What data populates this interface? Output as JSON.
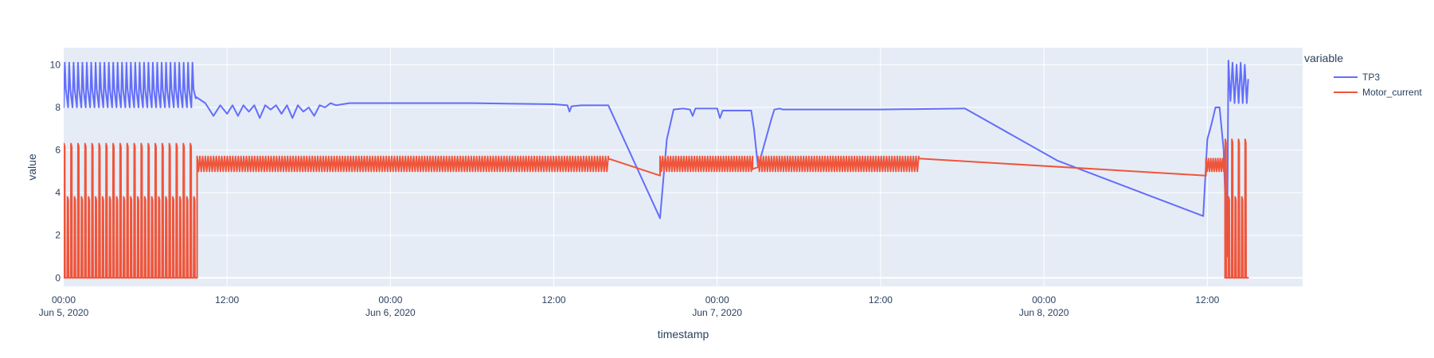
{
  "chart_data": {
    "type": "line",
    "title": "",
    "xlabel": "timestamp",
    "ylabel": "value",
    "ylim": [
      -0.4,
      10.8
    ],
    "xlim_hours": [
      0,
      91
    ],
    "grid": true,
    "legend_title": "variable",
    "legend_position": "top-right",
    "colors": {
      "plot_bg": "#e5ecf6",
      "grid": "#ffffff",
      "text": "#2a3f5f"
    },
    "y_ticks": [
      "0",
      "2",
      "4",
      "6",
      "8",
      "10"
    ],
    "x_ticks": [
      {
        "hours": 0,
        "label": "00:00",
        "date": "Jun 5, 2020"
      },
      {
        "hours": 12,
        "label": "12:00",
        "date": ""
      },
      {
        "hours": 24,
        "label": "00:00",
        "date": "Jun 6, 2020"
      },
      {
        "hours": 36,
        "label": "12:00",
        "date": ""
      },
      {
        "hours": 48,
        "label": "00:00",
        "date": "Jun 7, 2020"
      },
      {
        "hours": 60,
        "label": "12:00",
        "date": ""
      },
      {
        "hours": 72,
        "label": "00:00",
        "date": "Jun 8, 2020"
      },
      {
        "hours": 84,
        "label": "12:00",
        "date": ""
      }
    ],
    "series": [
      {
        "name": "TP3",
        "color": "#636efa",
        "segments": [
          {
            "type": "osc",
            "start": 0,
            "end": 9.7,
            "low": 8.0,
            "high": 10.1,
            "cycles": 30
          },
          {
            "type": "points",
            "x": [
              9.7,
              10.4,
              11.0,
              11.5,
              12.0,
              12.4,
              12.8,
              13.2,
              13.6,
              14.0,
              14.4,
              14.8,
              15.2,
              15.6,
              16.0,
              16.4,
              16.8,
              17.2,
              17.6,
              18.0,
              18.4,
              18.8,
              19.2,
              19.6,
              20.0,
              21.0,
              22.0
            ],
            "y": [
              8.5,
              8.2,
              7.6,
              8.1,
              7.7,
              8.1,
              7.6,
              8.1,
              7.8,
              8.1,
              7.5,
              8.1,
              7.9,
              8.1,
              7.7,
              8.1,
              7.5,
              8.1,
              7.8,
              8.0,
              7.6,
              8.1,
              8.0,
              8.2,
              8.1,
              8.2,
              8.2
            ]
          },
          {
            "type": "points",
            "x": [
              22.0,
              30.0,
              36.0,
              37.0,
              37.15,
              37.3,
              38.0,
              40.0
            ],
            "y": [
              8.2,
              8.2,
              8.15,
              8.1,
              7.8,
              8.05,
              8.1,
              8.1
            ]
          },
          {
            "type": "points",
            "x": [
              40.0,
              43.8,
              44.3,
              44.8,
              45.5,
              46.0,
              46.2,
              46.4,
              48.0,
              48.2,
              48.4,
              50.5,
              50.7,
              51.0,
              52.0,
              52.2,
              52.6,
              52.8,
              53.6,
              60.0,
              66.0,
              66.2,
              73.0,
              83.7,
              84.0,
              84.3,
              84.6,
              84.9,
              85.2
            ],
            "y": [
              8.1,
              2.8,
              6.5,
              7.9,
              7.95,
              7.9,
              7.6,
              7.95,
              7.95,
              7.5,
              7.85,
              7.85,
              7.0,
              5.2,
              7.5,
              7.9,
              7.95,
              7.9,
              7.9,
              7.9,
              7.95,
              7.95,
              5.5,
              2.9,
              6.5,
              7.2,
              8.0,
              8.0,
              6.0
            ]
          },
          {
            "type": "points",
            "x": [
              85.2,
              85.45,
              85.55,
              85.7,
              85.85,
              86.0,
              86.15,
              86.3,
              86.45,
              86.6,
              86.75,
              86.9,
              87.0
            ],
            "y": [
              6.0,
              1.0,
              10.2,
              8.3,
              10.1,
              8.2,
              10.0,
              8.2,
              10.1,
              8.2,
              10.0,
              8.2,
              9.3
            ]
          }
        ]
      },
      {
        "name": "Motor_current",
        "color": "#ef553b",
        "segments": [
          {
            "type": "pulse",
            "start": 0,
            "end": 9.8,
            "count": 38,
            "highs": [
              6.3,
              3.8
            ],
            "low": 0
          },
          {
            "type": "band",
            "start": 9.8,
            "end": 40.0,
            "low": 5.0,
            "high": 5.7,
            "cycles": 150
          },
          {
            "type": "points",
            "x": [
              40.0,
              43.8
            ],
            "y": [
              5.6,
              4.8
            ]
          },
          {
            "type": "band",
            "start": 43.8,
            "end": 50.6,
            "low": 5.0,
            "high": 5.7,
            "cycles": 35
          },
          {
            "type": "points",
            "x": [
              50.6,
              51.0
            ],
            "y": [
              5.1,
              5.2
            ]
          },
          {
            "type": "band",
            "start": 51.0,
            "end": 62.8,
            "low": 5.0,
            "high": 5.7,
            "cycles": 60
          },
          {
            "type": "points",
            "x": [
              62.8,
              83.9
            ],
            "y": [
              5.6,
              4.8
            ]
          },
          {
            "type": "band",
            "start": 83.9,
            "end": 85.3,
            "low": 5.0,
            "high": 5.6,
            "cycles": 8
          },
          {
            "type": "pulse",
            "start": 85.3,
            "end": 87.0,
            "count": 7,
            "highs": [
              6.5,
              3.8
            ],
            "low": 0
          }
        ]
      }
    ]
  }
}
